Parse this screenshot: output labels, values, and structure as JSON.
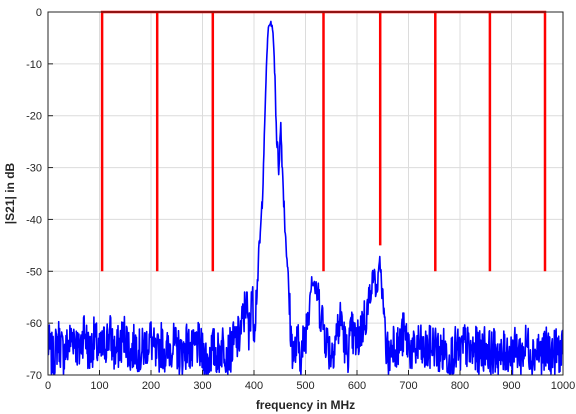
{
  "chart_data": {
    "type": "line",
    "title": "",
    "xlabel": "frequency in MHz",
    "ylabel": "|S21| in dB",
    "xlim": [
      0,
      1000
    ],
    "ylim": [
      -70,
      0
    ],
    "xticks": [
      0,
      100,
      200,
      300,
      400,
      500,
      600,
      700,
      800,
      900,
      1000
    ],
    "yticks": [
      0,
      -10,
      -20,
      -30,
      -40,
      -50,
      -60,
      -70
    ],
    "grid": true,
    "legend": "none",
    "series": [
      {
        "color": "#0000ff",
        "style": "solid",
        "description_points": [
          [
            0,
            -64
          ],
          [
            10,
            -67
          ],
          [
            20,
            -63
          ],
          [
            30,
            -66
          ],
          [
            40,
            -64
          ],
          [
            50,
            -62
          ],
          [
            60,
            -66
          ],
          [
            70,
            -61
          ],
          [
            80,
            -66
          ],
          [
            90,
            -63
          ],
          [
            100,
            -66
          ],
          [
            110,
            -64
          ],
          [
            120,
            -62
          ],
          [
            130,
            -66
          ],
          [
            140,
            -64
          ],
          [
            150,
            -62
          ],
          [
            160,
            -66
          ],
          [
            170,
            -64
          ],
          [
            180,
            -66
          ],
          [
            190,
            -64
          ],
          [
            200,
            -63
          ],
          [
            210,
            -67
          ],
          [
            220,
            -64
          ],
          [
            230,
            -66
          ],
          [
            240,
            -64
          ],
          [
            250,
            -65
          ],
          [
            260,
            -66
          ],
          [
            270,
            -64
          ],
          [
            280,
            -66
          ],
          [
            290,
            -64
          ],
          [
            300,
            -66
          ],
          [
            310,
            -67
          ],
          [
            320,
            -65
          ],
          [
            330,
            -66
          ],
          [
            340,
            -64
          ],
          [
            350,
            -66
          ],
          [
            360,
            -64
          ],
          [
            370,
            -63
          ],
          [
            380,
            -59
          ],
          [
            385,
            -55
          ],
          [
            390,
            -63
          ],
          [
            395,
            -54
          ],
          [
            400,
            -60
          ],
          [
            405,
            -55
          ],
          [
            410,
            -46
          ],
          [
            413,
            -42
          ],
          [
            416,
            -36
          ],
          [
            420,
            -24
          ],
          [
            425,
            -8
          ],
          [
            428,
            -3
          ],
          [
            432,
            -2
          ],
          [
            436,
            -3
          ],
          [
            440,
            -10
          ],
          [
            444,
            -24
          ],
          [
            448,
            -30
          ],
          [
            452,
            -22
          ],
          [
            456,
            -32
          ],
          [
            460,
            -41
          ],
          [
            464,
            -47
          ],
          [
            468,
            -55
          ],
          [
            472,
            -63
          ],
          [
            478,
            -66
          ],
          [
            485,
            -64
          ],
          [
            492,
            -66
          ],
          [
            500,
            -62
          ],
          [
            506,
            -57
          ],
          [
            512,
            -51
          ],
          [
            518,
            -53
          ],
          [
            524,
            -55
          ],
          [
            530,
            -58
          ],
          [
            540,
            -63
          ],
          [
            550,
            -66
          ],
          [
            560,
            -62
          ],
          [
            570,
            -59
          ],
          [
            575,
            -63
          ],
          [
            580,
            -66
          ],
          [
            590,
            -62
          ],
          [
            600,
            -64
          ],
          [
            608,
            -61
          ],
          [
            615,
            -59
          ],
          [
            622,
            -57
          ],
          [
            628,
            -53
          ],
          [
            633,
            -50
          ],
          [
            637,
            -54
          ],
          [
            641,
            -52
          ],
          [
            645,
            -48
          ],
          [
            650,
            -56
          ],
          [
            655,
            -63
          ],
          [
            662,
            -67
          ],
          [
            670,
            -63
          ],
          [
            680,
            -65
          ],
          [
            690,
            -62
          ],
          [
            700,
            -64
          ],
          [
            710,
            -66
          ],
          [
            720,
            -64
          ],
          [
            730,
            -66
          ],
          [
            740,
            -65
          ],
          [
            750,
            -64
          ],
          [
            760,
            -66
          ],
          [
            770,
            -65
          ],
          [
            780,
            -67
          ],
          [
            790,
            -65
          ],
          [
            800,
            -66
          ],
          [
            810,
            -64
          ],
          [
            820,
            -66
          ],
          [
            830,
            -65
          ],
          [
            840,
            -66
          ],
          [
            850,
            -64
          ],
          [
            860,
            -66
          ],
          [
            870,
            -65
          ],
          [
            880,
            -67
          ],
          [
            890,
            -65
          ],
          [
            900,
            -66
          ],
          [
            910,
            -65
          ],
          [
            920,
            -66
          ],
          [
            930,
            -64
          ],
          [
            940,
            -66
          ],
          [
            950,
            -65
          ],
          [
            960,
            -66
          ],
          [
            970,
            -65
          ],
          [
            980,
            -66
          ],
          [
            990,
            -65
          ],
          [
            1000,
            -66
          ]
        ]
      },
      {
        "color": "#ff0000",
        "style": "step",
        "description_points": [
          [
            105,
            -50
          ],
          [
            105,
            0
          ],
          [
            212,
            0
          ],
          [
            212,
            -50
          ],
          [
            212,
            0
          ],
          [
            320,
            0
          ],
          [
            320,
            -50
          ],
          [
            320,
            0
          ],
          [
            535,
            0
          ],
          [
            535,
            -50
          ],
          [
            535,
            0
          ],
          [
            645,
            0
          ],
          [
            645,
            -45
          ],
          [
            645,
            0
          ],
          [
            752,
            0
          ],
          [
            752,
            -50
          ],
          [
            752,
            0
          ],
          [
            858,
            0
          ],
          [
            858,
            -50
          ],
          [
            858,
            0
          ],
          [
            965,
            0
          ],
          [
            965,
            -50
          ]
        ]
      }
    ]
  }
}
